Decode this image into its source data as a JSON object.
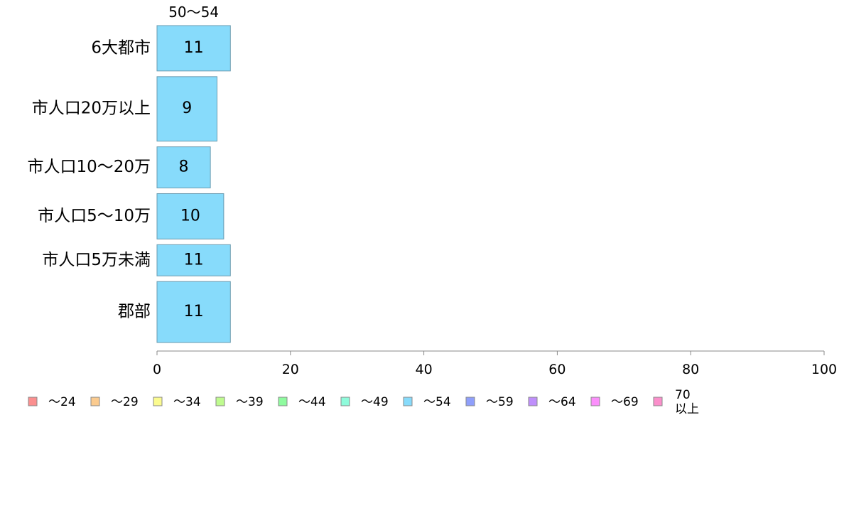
{
  "chart_data": {
    "type": "bar",
    "orientation": "horizontal",
    "stacked": true,
    "column_header": "50〜54",
    "categories": [
      "6大都市",
      "市人口20万以上",
      "市人口10〜20万",
      "市人口5〜10万",
      "市人口5万未満",
      "郡部"
    ],
    "category_weights": [
      64,
      91,
      58,
      64,
      44,
      86
    ],
    "series": [
      {
        "name": "50〜54",
        "values": [
          11,
          9,
          8,
          10,
          11,
          11
        ],
        "color": "#87dbfb"
      }
    ],
    "xlim": [
      0,
      100
    ],
    "xticks": [
      "0",
      "20",
      "40",
      "60",
      "80",
      "100"
    ],
    "legend": [
      {
        "label": "〜24",
        "color": "#fb8f8f"
      },
      {
        "label": "〜29",
        "color": "#fbcb8f"
      },
      {
        "label": "〜34",
        "color": "#fbfb8f"
      },
      {
        "label": "〜39",
        "color": "#bffb8f"
      },
      {
        "label": "〜44",
        "color": "#8ffb9f"
      },
      {
        "label": "〜49",
        "color": "#8ffbdb"
      },
      {
        "label": "〜54",
        "color": "#87dbfb"
      },
      {
        "label": "〜59",
        "color": "#8f9ffb"
      },
      {
        "label": "〜64",
        "color": "#bf8ffb"
      },
      {
        "label": "〜69",
        "color": "#fb8ffb"
      },
      {
        "label": "70\n以上",
        "color": "#fb8fcb"
      }
    ],
    "legend_position": "bottom",
    "grid": false
  }
}
